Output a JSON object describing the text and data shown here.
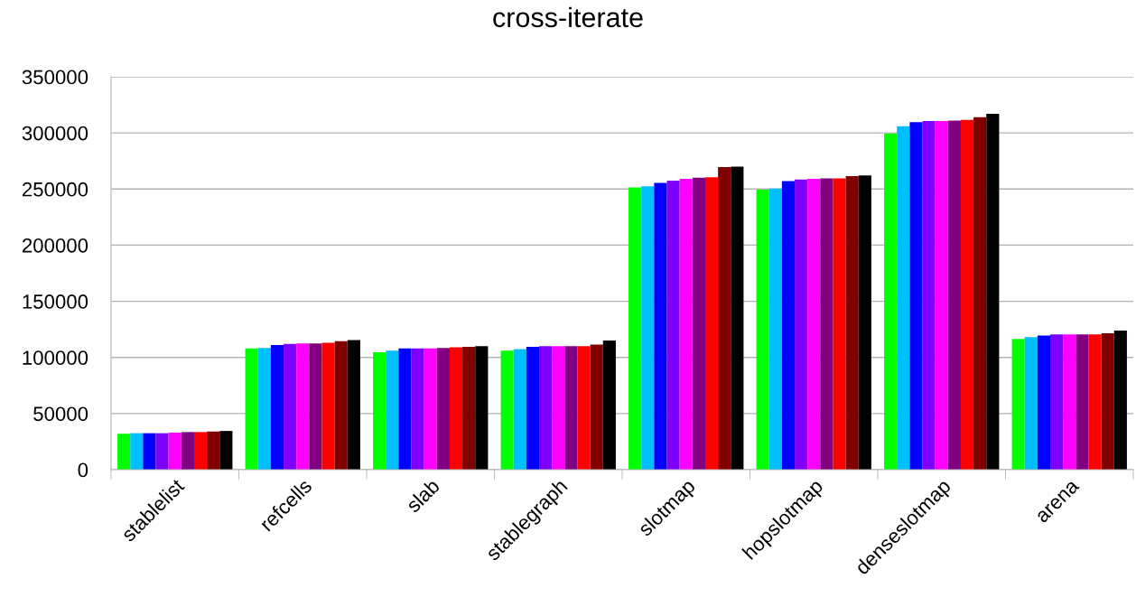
{
  "chart_data": {
    "type": "bar",
    "title": "cross-iterate",
    "categories": [
      "stablelist",
      "refcells",
      "slab",
      "stablegraph",
      "slotmap",
      "hopslotmap",
      "denseslotmap",
      "arena"
    ],
    "series": [
      {
        "color": "#00ff00",
        "values": [
          32000,
          108000,
          104500,
          106000,
          251500,
          249500,
          299500,
          116500
        ]
      },
      {
        "color": "#00bfff",
        "values": [
          32500,
          108500,
          106000,
          107500,
          252500,
          250500,
          306000,
          118000
        ]
      },
      {
        "color": "#0000ff",
        "values": [
          32500,
          111000,
          108000,
          109500,
          255500,
          257000,
          309500,
          119500
        ]
      },
      {
        "color": "#8000ff",
        "values": [
          32500,
          112000,
          108000,
          110000,
          257500,
          258500,
          310500,
          120500
        ]
      },
      {
        "color": "#ff00ff",
        "values": [
          33000,
          112500,
          108000,
          110000,
          259000,
          259000,
          310500,
          120500
        ]
      },
      {
        "color": "#800080",
        "values": [
          33500,
          112500,
          108500,
          110000,
          260000,
          259500,
          311000,
          120500
        ]
      },
      {
        "color": "#ff0000",
        "values": [
          33500,
          113000,
          109000,
          110000,
          260500,
          259500,
          311500,
          120500
        ]
      },
      {
        "color": "#800000",
        "values": [
          34000,
          114500,
          109500,
          111500,
          269500,
          261500,
          314000,
          121500
        ]
      },
      {
        "color": "#000000",
        "values": [
          34500,
          115500,
          110000,
          115000,
          270000,
          262000,
          317000,
          124000
        ]
      }
    ],
    "ylim": [
      0,
      350000
    ],
    "yticks": [
      0,
      50000,
      100000,
      150000,
      200000,
      250000,
      300000,
      350000
    ],
    "grid": "y",
    "legend": false
  }
}
